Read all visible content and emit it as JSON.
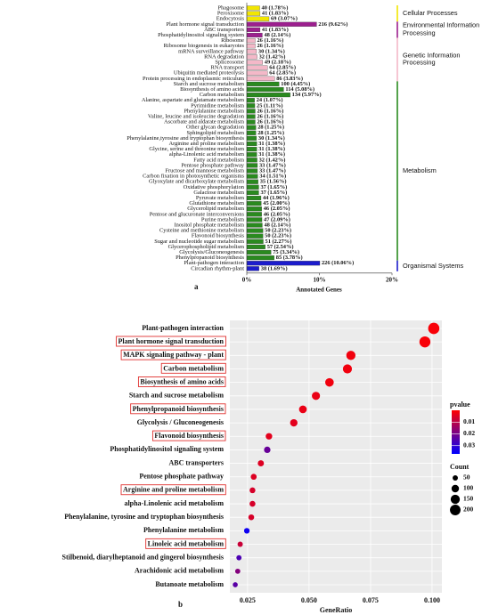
{
  "chart_data": [
    {
      "type": "bar",
      "orientation": "horizontal",
      "panel_label": "a",
      "xlabel": "Annotated Genes",
      "xlim": [
        0,
        20
      ],
      "xticks": [
        {
          "value": 0,
          "label": "0%"
        },
        {
          "value": 10,
          "label": "10%"
        },
        {
          "value": 20,
          "label": "20%"
        }
      ],
      "series": [
        {
          "name": "Cellular Processes",
          "color": "#f2e600",
          "categories": [
            "Phagosome",
            "Peroxisome",
            "Endocytosis"
          ],
          "values": [
            1.78,
            1.83,
            3.07
          ],
          "value_labels": [
            "40 (1.78%)",
            "41 (1.83%)",
            "69 (3.07%)"
          ]
        },
        {
          "name": "Environmental Information Processing",
          "color": "#9c1f8e",
          "categories": [
            "Plant hormone signal transduction",
            "ABC transporters",
            "Phosphatidylinositol signaling system"
          ],
          "values": [
            9.62,
            1.83,
            2.14
          ],
          "value_labels": [
            "216 (9.62%)",
            "41 (1.83%)",
            "48 (2.14%)"
          ]
        },
        {
          "name": "Genetic Information Processing",
          "color": "#f4b8c8",
          "categories": [
            "Ribosome",
            "Ribosome biogenesis in eukaryotes",
            "mRNA surveillance pathway",
            "RNA degradation",
            "Spliceosome",
            "RNA transport",
            "Ubiquitin mediated proteolysis",
            "Protein processing in endoplasmic reticulum"
          ],
          "values": [
            1.16,
            1.16,
            1.34,
            1.42,
            2.18,
            2.85,
            2.85,
            3.83
          ],
          "value_labels": [
            "26 (1.16%)",
            "26 (1.16%)",
            "30 (1.34%)",
            "32 (1.42%)",
            "49 (2.18%)",
            "64 (2.85%)",
            "64 (2.85%)",
            "86 (3.83%)"
          ]
        },
        {
          "name": "Metabolism",
          "color": "#2a8a1f",
          "categories": [
            "Starch and sucrose metabolism",
            "Biosynthesis of amino acids",
            "Carbon metabolism",
            "Alanine, aspartate and glutamate metabolism",
            "Pyrimidine metabolism",
            "Phenylalanine metabolism",
            "Valine, leucine and isoleucine degradation",
            "Ascorbate and aldarate metabolism",
            "Other glycan degradation",
            "Sphingolipid metabolism",
            "Phenylalanine,tyrosine and tryptophan biosynthesis",
            "Arginine and proline metabolism",
            "Glycine, serine and threonine metabolism",
            "alpha-Linolenic acid metabolism",
            "Fatty acid metabolism",
            "Pentose phosphate pathway",
            "Fructose and mannose metabolism",
            "Carbon fixation in photosynthetic organisms",
            "Glyoxylate and dicarboxylate metabolism",
            "Oxidative phosphorylation",
            "Galactose metabolism",
            "Pyruvate metabolism",
            "Glutathione metabolism",
            "Glycerolipid metabolism",
            "Pentose and glucuronate interconversions",
            "Purine metabolism",
            "Inositol phosphate metabolism",
            "Cysteine and methionine metabolism",
            "Flavonoid biosynthesis",
            "Sugar and nucleotide sugar metabolism",
            "Glycerophospholipid metabolism",
            "Glycolysis/Gluconeogenesis",
            "Phenylpropanoid biosynthesis"
          ],
          "values": [
            4.45,
            5.08,
            5.97,
            1.07,
            1.11,
            1.16,
            1.16,
            1.16,
            1.25,
            1.25,
            1.34,
            1.38,
            1.38,
            1.38,
            1.42,
            1.47,
            1.47,
            1.51,
            1.56,
            1.65,
            1.65,
            1.96,
            2.0,
            2.05,
            2.05,
            2.09,
            2.14,
            2.23,
            2.23,
            2.27,
            2.54,
            3.34,
            3.78
          ],
          "value_labels": [
            "100 (4.45%)",
            "114 (5.08%)",
            "134 (5.97%)",
            "24 (1.07%)",
            "25 (1.11%)",
            "26 (1.16%)",
            "26 (1.16%)",
            "26 (1.16%)",
            "28 (1.25%)",
            "28 (1.25%)",
            "30 (1.34%)",
            "31 (1.38%)",
            "31 (1.38%)",
            "31 (1.38%)",
            "32 (1.42%)",
            "33 (1.47%)",
            "33 (1.47%)",
            "34 (1.51%)",
            "35 (1.56%)",
            "37 (1.65%)",
            "37 (1.65%)",
            "44 (1.96%)",
            "45 (2.00%)",
            "46 (2.05%)",
            "46 (2.05%)",
            "47 (2.09%)",
            "48 (2.14%)",
            "50 (2.23%)",
            "50 (2.23%)",
            "51 (2.27%)",
            "57 (2.54%)",
            "75 (3.34%)",
            "85 (3.78%)"
          ]
        },
        {
          "name": "Organismal Systems",
          "color": "#1c1ccc",
          "categories": [
            "Plant-pathogen interaction",
            "Circadian rhythm-plant"
          ],
          "values": [
            10.06,
            1.69
          ],
          "value_labels": [
            "226 (10.06%)",
            "38 (1.69%)"
          ]
        }
      ]
    },
    {
      "type": "dot",
      "panel_label": "b",
      "xlabel": "GeneRatio",
      "xlim": [
        0.0178,
        0.104
      ],
      "xticks": [
        0.025,
        {
          "value": 0.05,
          "label": "0.050"
        },
        0.075,
        {
          "value": 0.1,
          "label": "0.100"
        }
      ],
      "categories": [
        "Plant-pathogen interaction",
        "Plant hormone signal transduction",
        "MAPK signaling pathway - plant",
        "Carbon metabolism",
        "Biosynthesis of amino acids",
        "Starch and sucrose metabolism",
        "Phenylpropanoid biosynthesis",
        "Glycolysis / Gluconeogenesis",
        "Flavonoid biosynthesis",
        "Phosphatidylinositol signaling system",
        "ABC transporters",
        "Pentose phosphate pathway",
        "Arginine and proline metabolism",
        "alpha-Linolenic acid metabolism",
        "Phenylalanine, tyrosine and tryptophan biosynthesis",
        "Phenylalanine metabolism",
        "Linoleic acid metabolism",
        "Stilbenoid, diarylheptanoid and gingerol biosynthesis",
        "Arachidonic acid metabolism",
        "Butanoate metabolism"
      ],
      "boxed": [
        false,
        true,
        true,
        true,
        true,
        false,
        true,
        false,
        true,
        false,
        false,
        false,
        true,
        false,
        false,
        false,
        true,
        false,
        false,
        false
      ],
      "x": [
        0.1007,
        0.0971,
        0.067,
        0.0656,
        0.0583,
        0.0528,
        0.0475,
        0.0438,
        0.0337,
        0.033,
        0.0304,
        0.0275,
        0.027,
        0.027,
        0.0265,
        0.0247,
        0.022,
        0.0215,
        0.021,
        0.02
      ],
      "size": [
        226,
        216,
        150,
        147,
        131,
        119,
        107,
        98,
        76,
        74,
        68,
        62,
        61,
        61,
        60,
        56,
        50,
        48,
        47,
        45
      ],
      "pvalue": [
        0.001,
        0.001,
        0.002,
        0.002,
        0.002,
        0.003,
        0.003,
        0.004,
        0.004,
        0.022,
        0.005,
        0.005,
        0.006,
        0.006,
        0.006,
        0.035,
        0.008,
        0.026,
        0.018,
        0.024
      ],
      "color_title": "pvalue",
      "clim": [
        0.0,
        0.037
      ],
      "cticks": [
        0.01,
        0.02,
        0.03
      ],
      "colors": [
        "#ff0000",
        "#0000ff"
      ],
      "size_title": "Count",
      "size_ticks": [
        50,
        100,
        150,
        200
      ]
    }
  ]
}
